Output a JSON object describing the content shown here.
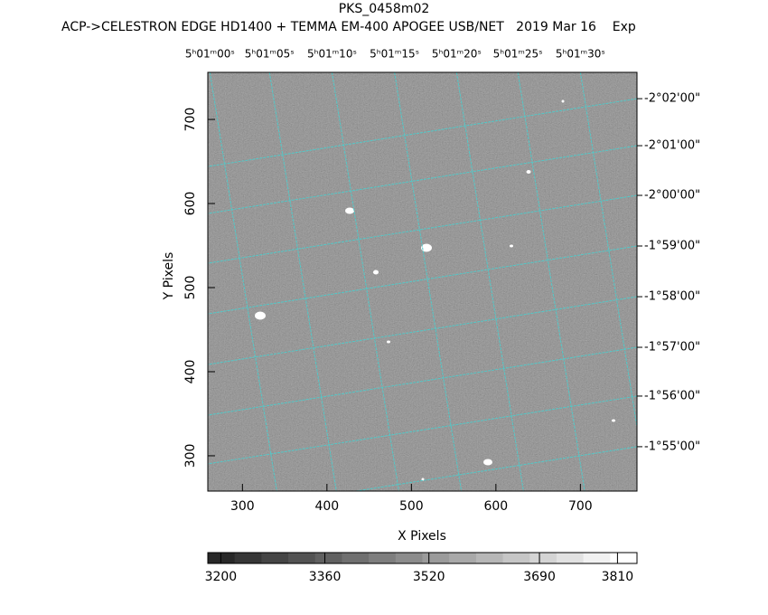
{
  "chart_data": {
    "type": "image",
    "title": "PKS_0458m02",
    "subtitle": "ACP->CELESTRON EDGE HD1400 + TEMMA EM-400 APOGEE USB/NET   2019 Mar 16    Exp",
    "x_label": "X Pixels",
    "y_label": "Y Pixels",
    "xlim": [
      259,
      767
    ],
    "ylim": [
      258,
      756
    ],
    "xticks": [
      300,
      400,
      500,
      600,
      700
    ],
    "yticks": [
      300,
      400,
      500,
      600,
      700
    ],
    "x2ticks": [
      {
        "value": 261.5,
        "label": "5ʰ01ᵐ00ˢ"
      },
      {
        "value": 332,
        "label": "5ʰ01ᵐ05ˢ"
      },
      {
        "value": 406,
        "label": "5ʰ01ᵐ10ˢ"
      },
      {
        "value": 480,
        "label": "5ʰ01ᵐ15ˢ"
      },
      {
        "value": 553.5,
        "label": "5ʰ01ᵐ20ˢ"
      },
      {
        "value": 626,
        "label": "5ʰ01ᵐ25ˢ"
      },
      {
        "value": 700,
        "label": "5ʰ01ᵐ30ˢ"
      }
    ],
    "y2ticks": [
      {
        "value": 724.7,
        "label": "-2°02'00\""
      },
      {
        "value": 668.8,
        "label": "-2°01'00\""
      },
      {
        "value": 609.7,
        "label": "-2°00'00\""
      },
      {
        "value": 549.5,
        "label": "-1°59'00\""
      },
      {
        "value": 489.2,
        "label": "-1°58'00\""
      },
      {
        "value": 429,
        "label": "-1°57'00\""
      },
      {
        "value": 371,
        "label": "-1°56'00\""
      },
      {
        "value": 310.8,
        "label": "-1°55'00\""
      }
    ],
    "grid": true,
    "grid_color": "#52c8c8",
    "colorbar": {
      "clim": [
        3180,
        3840
      ],
      "ticks": [
        3200,
        3360,
        3520,
        3690,
        3810
      ]
    }
  }
}
